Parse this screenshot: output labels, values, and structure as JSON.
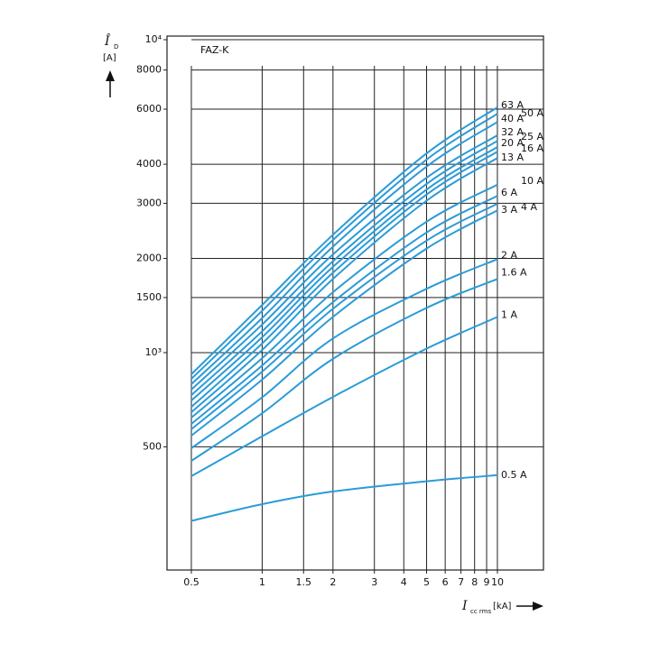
{
  "chart_data": {
    "type": "line",
    "annotation": "FAZ-K",
    "y_label": {
      "symbol": "Î",
      "subscript": "D",
      "unit": "[A]"
    },
    "x_label": {
      "symbol": "I",
      "subscript": "cc rms",
      "unit": "[kA]"
    },
    "log_x": true,
    "log_y": true,
    "grid": true,
    "xlim": [
      0.394,
      15.7
    ],
    "ylim": [
      202,
      10270
    ],
    "xticks": [
      0.5,
      1,
      1.5,
      2,
      3,
      4,
      5,
      6,
      7,
      8,
      9,
      10
    ],
    "yticks": [
      {
        "value": 10000,
        "label": "10⁴"
      },
      8000,
      6000,
      4000,
      3000,
      2000,
      1500,
      {
        "value": 1000,
        "label": "10³"
      },
      500
    ],
    "x": [
      0.5,
      1,
      2,
      5,
      10
    ],
    "series": [
      {
        "name": "63 A",
        "color": "#2b9bd8",
        "values": [
          853,
          1420,
          2380,
          4330,
          6080
        ]
      },
      {
        "name": "50 A",
        "color": "#2b9bd8",
        "values": [
          825,
          1360,
          2290,
          4140,
          5800
        ]
      },
      {
        "name": "40 A",
        "color": "#2b9bd8",
        "values": [
          793,
          1290,
          2180,
          3930,
          5460
        ]
      },
      {
        "name": "32 A",
        "color": "#2b9bd8",
        "values": [
          762,
          1230,
          2060,
          3620,
          4950
        ]
      },
      {
        "name": "25 A",
        "color": "#2b9bd8",
        "values": [
          732,
          1170,
          1960,
          3460,
          4750
        ]
      },
      {
        "name": "20 A",
        "color": "#2b9bd8",
        "values": [
          703,
          1120,
          1880,
          3320,
          4540
        ]
      },
      {
        "name": "16 A",
        "color": "#2b9bd8",
        "values": [
          671,
          1070,
          1800,
          3200,
          4390
        ]
      },
      {
        "name": "13 A",
        "color": "#2b9bd8",
        "values": [
          645,
          1020,
          1720,
          3060,
          4190
        ]
      },
      {
        "name": "10 A",
        "color": "#2b9bd8",
        "values": [
          620,
          960,
          1560,
          2620,
          3440
        ]
      },
      {
        "name": "6 A",
        "color": "#2b9bd8",
        "values": [
          592,
          910,
          1450,
          2420,
          3170
        ]
      },
      {
        "name": "4 A",
        "color": "#2b9bd8",
        "values": [
          569,
          870,
          1380,
          2280,
          2990
        ]
      },
      {
        "name": "3 A",
        "color": "#2b9bd8",
        "values": [
          543,
          820,
          1300,
          2150,
          2850
        ]
      },
      {
        "name": "2 A",
        "color": "#2b9bd8",
        "values": [
          495,
          720,
          1110,
          1600,
          1990
        ]
      },
      {
        "name": "1.6 A",
        "color": "#2b9bd8",
        "values": [
          451,
          640,
          955,
          1390,
          1720
        ]
      },
      {
        "name": "1 A",
        "color": "#2b9bd8",
        "values": [
          403,
          540,
          722,
          1030,
          1300
        ]
      },
      {
        "name": "0.5 A",
        "color": "#2b9bd8",
        "values": [
          290,
          328,
          360,
          388,
          406
        ]
      }
    ]
  }
}
